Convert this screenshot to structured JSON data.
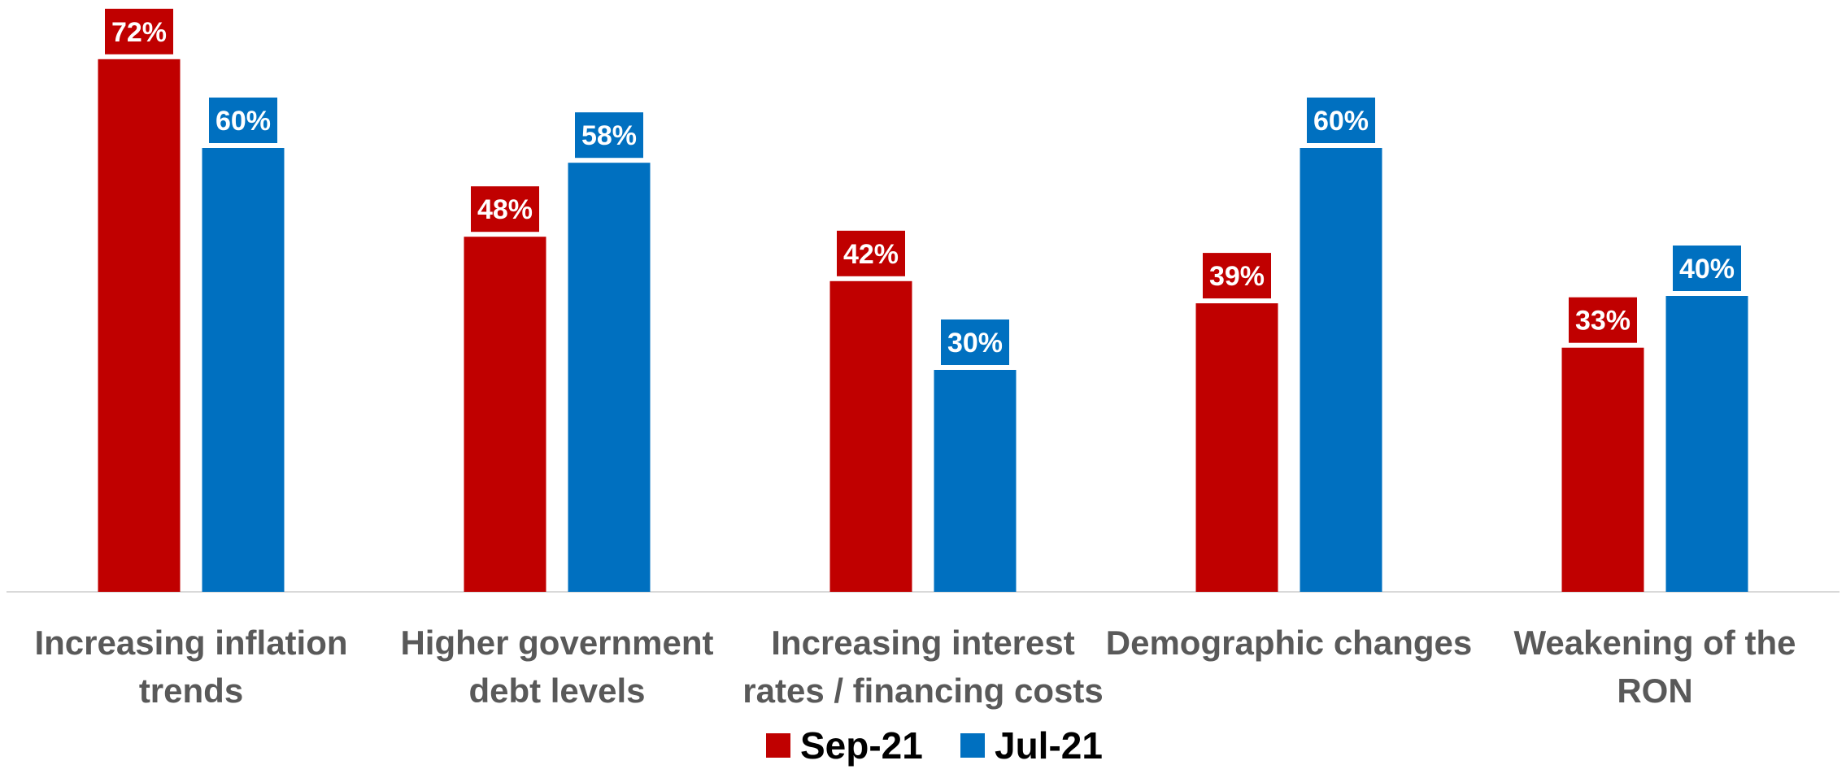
{
  "chart_data": {
    "type": "bar",
    "title": "",
    "xlabel": "",
    "ylabel": "",
    "ylim": [
      0,
      80
    ],
    "grid": false,
    "legend_position": "bottom",
    "categories": [
      [
        "Increasing inflation",
        "trends"
      ],
      [
        "Higher government",
        "debt levels"
      ],
      [
        "Increasing interest",
        "rates / financing costs"
      ],
      [
        "Demographic changes"
      ],
      [
        "Weakening of the",
        "RON"
      ]
    ],
    "series": [
      {
        "name": "Sep-21",
        "color": "#c00000",
        "values": [
          72,
          48,
          42,
          39,
          33
        ],
        "labels": [
          "72%",
          "48%",
          "42%",
          "39%",
          "33%"
        ]
      },
      {
        "name": "Jul-21",
        "color": "#0070c0",
        "values": [
          60,
          58,
          30,
          60,
          40
        ],
        "labels": [
          "60%",
          "58%",
          "30%",
          "60%",
          "40%"
        ]
      }
    ]
  }
}
